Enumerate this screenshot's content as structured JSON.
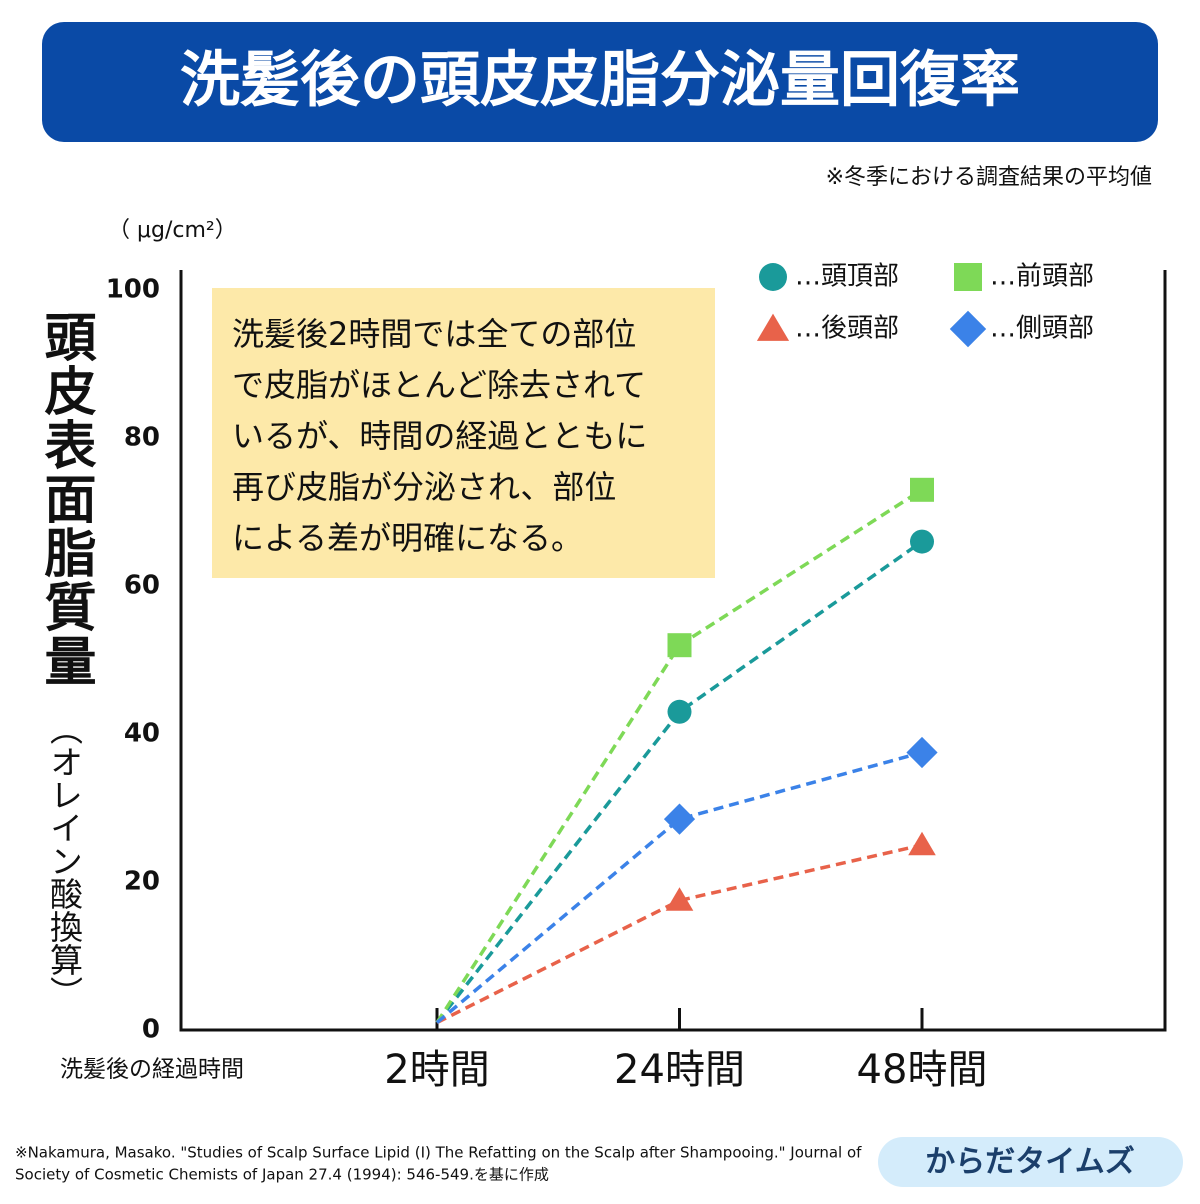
{
  "chart_data": {
    "type": "line",
    "title": "洗髪後の頭皮皮脂分泌量回復率",
    "subtitle": "※冬季における調査結果の平均値",
    "y_unit": "（ μg/cm²）",
    "y_label": "頭皮表面脂質量",
    "y_label_note": "（オレイン酸換算）",
    "x_label": "洗髪後の経過時間",
    "categories": [
      "2時間",
      "24時間",
      "48時間"
    ],
    "series": [
      {
        "name": "…頭頂部",
        "color": "#1a9a9a",
        "marker": "circle",
        "values": [
          1,
          43,
          66
        ]
      },
      {
        "name": "…前頭部",
        "color": "#7ed957",
        "marker": "square",
        "values": [
          1,
          52,
          73
        ]
      },
      {
        "name": "…後頭部",
        "color": "#e8624a",
        "marker": "triangle",
        "values": [
          1,
          17.5,
          25
        ]
      },
      {
        "name": "…側頭部",
        "color": "#3b82e8",
        "marker": "diamond",
        "values": [
          1,
          28.5,
          37.5
        ]
      }
    ],
    "ylim": [
      0,
      100
    ],
    "yticks": [
      0,
      20,
      40,
      60,
      80,
      100
    ],
    "grid": false,
    "annotation": [
      "洗髪後2時間では全ての部位",
      "で皮脂がほとんど除去されて",
      "いるが、時間の経過とともに",
      "再び皮脂が分泌され、部位",
      "による差が明確になる。"
    ],
    "source": [
      "※Nakamura, Masako. \"Studies of Scalp Surface Lipid (I) The Refatting on the Scalp after Shampooing.\" Journal of",
      "Society of Cosmetic Chemists of Japan 27.4 (1994): 546-549.を基に作成"
    ],
    "brand": "からだタイムズ"
  }
}
